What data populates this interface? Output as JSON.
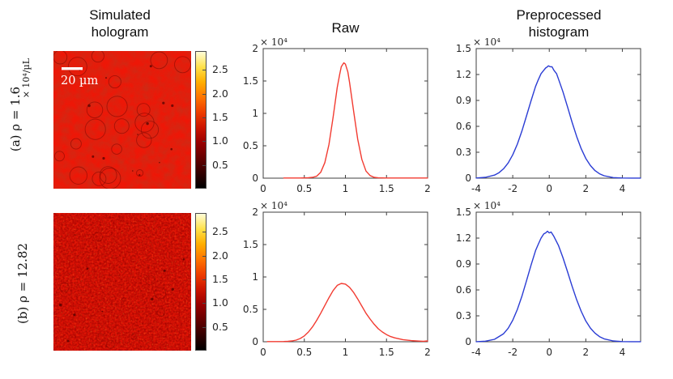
{
  "titles": {
    "col1": "Simulated hologram",
    "col2": "Raw",
    "col3": "Preprocessed histogram"
  },
  "rows": [
    {
      "label_main": "(a) ρ = 1.6",
      "label_sub": "× 10⁴/µL"
    },
    {
      "label_main": "(b) ρ = 12.82",
      "label_sub": ""
    }
  ],
  "holograms": [
    {
      "scale_bar_label": "20 µm",
      "base_color": "#ed1707"
    },
    {
      "scale_bar_label": "",
      "base_color": "#e31405"
    }
  ],
  "colorbar": {
    "colormap": "hot",
    "range": [
      0,
      2.9
    ],
    "values": [
      0.5,
      1.0,
      1.5,
      2.0,
      2.5
    ],
    "labels": [
      "0.5",
      "1.0",
      "1.5",
      "2.0",
      "2.5"
    ],
    "gradient": [
      "#000000",
      "#330000",
      "#660000",
      "#990000",
      "#cc1400",
      "#ee3d00",
      "#ff7400",
      "#ffae00",
      "#ffe14a",
      "#fffdd8"
    ]
  },
  "chart_data": [
    {
      "id": "raw-histogram-a",
      "type": "line",
      "title": "Raw",
      "xlabel": "",
      "ylabel": "",
      "y_multiplier_label": "× 10⁴",
      "xlim": [
        0,
        2
      ],
      "ylim": [
        0,
        2
      ],
      "xticks": [
        0,
        0.5,
        1,
        1.5,
        2
      ],
      "xtick_labels": [
        "0",
        "0.5",
        "1",
        "1.5",
        "2"
      ],
      "yticks": [
        0,
        0.5,
        1,
        1.5,
        2
      ],
      "ytick_labels": [
        "0",
        "0.5",
        "1",
        "1.5",
        "2"
      ],
      "grid": false,
      "legend": "none",
      "series": [
        {
          "name": "raw-intensity-histogram",
          "color": "#f23b31",
          "points": [
            [
              0.25,
              0.002
            ],
            [
              0.35,
              0.002
            ],
            [
              0.45,
              0.003
            ],
            [
              0.55,
              0.006
            ],
            [
              0.6,
              0.012
            ],
            [
              0.65,
              0.03
            ],
            [
              0.7,
              0.09
            ],
            [
              0.75,
              0.24
            ],
            [
              0.8,
              0.52
            ],
            [
              0.85,
              0.94
            ],
            [
              0.9,
              1.4
            ],
            [
              0.93,
              1.6
            ],
            [
              0.95,
              1.72
            ],
            [
              0.98,
              1.78
            ],
            [
              1.0,
              1.76
            ],
            [
              1.03,
              1.64
            ],
            [
              1.05,
              1.48
            ],
            [
              1.1,
              1.03
            ],
            [
              1.15,
              0.6
            ],
            [
              1.2,
              0.29
            ],
            [
              1.25,
              0.11
            ],
            [
              1.3,
              0.04
            ],
            [
              1.35,
              0.012
            ],
            [
              1.4,
              0.005
            ],
            [
              1.5,
              0.002
            ],
            [
              1.6,
              0.002
            ],
            [
              1.8,
              0.002
            ],
            [
              2.0,
              0.002
            ]
          ]
        }
      ]
    },
    {
      "id": "preprocessed-histogram-a",
      "type": "line",
      "title": "Preprocessed histogram",
      "xlabel": "",
      "ylabel": "",
      "y_multiplier_label": "× 10⁴",
      "xlim": [
        -4,
        5
      ],
      "ylim": [
        0,
        1.5
      ],
      "xticks": [
        -4,
        -2,
        0,
        2,
        4
      ],
      "xtick_labels": [
        "-4",
        "-2",
        "0",
        "2",
        "4"
      ],
      "yticks": [
        0,
        0.3,
        0.6,
        0.9,
        1.2,
        1.5
      ],
      "ytick_labels": [
        "0",
        "0.3",
        "0.6",
        "0.9",
        "1.2",
        "1.5"
      ],
      "grid": false,
      "legend": "none",
      "series": [
        {
          "name": "preprocessed-histogram",
          "color": "#2a3cd4",
          "points": [
            [
              -4,
              0.002
            ],
            [
              -3.5,
              0.009
            ],
            [
              -3,
              0.036
            ],
            [
              -2.75,
              0.064
            ],
            [
              -2.5,
              0.109
            ],
            [
              -2.25,
              0.176
            ],
            [
              -2,
              0.27
            ],
            [
              -1.75,
              0.394
            ],
            [
              -1.5,
              0.545
            ],
            [
              -1.25,
              0.717
            ],
            [
              -1,
              0.895
            ],
            [
              -0.75,
              1.062
            ],
            [
              -0.6,
              1.14
            ],
            [
              -0.45,
              1.21
            ],
            [
              -0.3,
              1.25
            ],
            [
              -0.2,
              1.275
            ],
            [
              -0.1,
              1.29
            ],
            [
              -0.05,
              1.3
            ],
            [
              0.05,
              1.29
            ],
            [
              0.15,
              1.29
            ],
            [
              0.25,
              1.25
            ],
            [
              0.4,
              1.21
            ],
            [
              0.5,
              1.15
            ],
            [
              0.75,
              1.0
            ],
            [
              1,
              0.824
            ],
            [
              1.25,
              0.647
            ],
            [
              1.5,
              0.481
            ],
            [
              1.75,
              0.34
            ],
            [
              2,
              0.229
            ],
            [
              2.25,
              0.146
            ],
            [
              2.5,
              0.088
            ],
            [
              2.75,
              0.051
            ],
            [
              3,
              0.028
            ],
            [
              3.5,
              0.007
            ],
            [
              4,
              0.002
            ],
            [
              4.5,
              0.001
            ],
            [
              5,
              0.001
            ]
          ]
        }
      ]
    },
    {
      "id": "raw-histogram-b",
      "type": "line",
      "title": "Raw",
      "xlabel": "",
      "ylabel": "",
      "y_multiplier_label": "× 10⁴",
      "xlim": [
        0,
        2
      ],
      "ylim": [
        0,
        2
      ],
      "xticks": [
        0,
        0.5,
        1,
        1.5,
        2
      ],
      "xtick_labels": [
        "0",
        "0.5",
        "1",
        "1.5",
        "2"
      ],
      "yticks": [
        0,
        0.5,
        1,
        1.5,
        2
      ],
      "ytick_labels": [
        "0",
        "0.5",
        "1",
        "1.5",
        "2"
      ],
      "grid": false,
      "legend": "none",
      "series": [
        {
          "name": "raw-intensity-histogram",
          "color": "#f23b31",
          "points": [
            [
              0.05,
              0.003
            ],
            [
              0.15,
              0.003
            ],
            [
              0.25,
              0.004
            ],
            [
              0.3,
              0.006
            ],
            [
              0.35,
              0.012
            ],
            [
              0.4,
              0.025
            ],
            [
              0.45,
              0.05
            ],
            [
              0.5,
              0.09
            ],
            [
              0.55,
              0.15
            ],
            [
              0.6,
              0.23
            ],
            [
              0.65,
              0.33
            ],
            [
              0.7,
              0.44
            ],
            [
              0.75,
              0.56
            ],
            [
              0.8,
              0.68
            ],
            [
              0.85,
              0.79
            ],
            [
              0.9,
              0.87
            ],
            [
              0.95,
              0.9
            ],
            [
              1.0,
              0.89
            ],
            [
              1.05,
              0.84
            ],
            [
              1.1,
              0.76
            ],
            [
              1.15,
              0.66
            ],
            [
              1.2,
              0.55
            ],
            [
              1.25,
              0.44
            ],
            [
              1.3,
              0.35
            ],
            [
              1.35,
              0.27
            ],
            [
              1.4,
              0.2
            ],
            [
              1.45,
              0.15
            ],
            [
              1.5,
              0.11
            ],
            [
              1.55,
              0.08
            ],
            [
              1.6,
              0.06
            ],
            [
              1.7,
              0.032
            ],
            [
              1.8,
              0.018
            ],
            [
              1.9,
              0.01
            ],
            [
              1.95,
              0.008
            ],
            [
              2.0,
              0.012
            ]
          ]
        }
      ]
    },
    {
      "id": "preprocessed-histogram-b",
      "type": "line",
      "title": "Preprocessed histogram",
      "xlabel": "",
      "ylabel": "",
      "y_multiplier_label": "× 10⁴",
      "xlim": [
        -4,
        5
      ],
      "ylim": [
        0,
        1.5
      ],
      "xticks": [
        -4,
        -2,
        0,
        2,
        4
      ],
      "xtick_labels": [
        "-4",
        "-2",
        "0",
        "2",
        "4"
      ],
      "yticks": [
        0,
        0.3,
        0.6,
        0.9,
        1.2,
        1.5
      ],
      "ytick_labels": [
        "0",
        "0.3",
        "0.6",
        "0.9",
        "1.2",
        "1.5"
      ],
      "grid": false,
      "legend": "none",
      "series": [
        {
          "name": "preprocessed-histogram",
          "color": "#2a3cd4",
          "points": [
            [
              -4,
              0.001
            ],
            [
              -3.5,
              0.007
            ],
            [
              -3,
              0.028
            ],
            [
              -2.5,
              0.093
            ],
            [
              -2.25,
              0.157
            ],
            [
              -2,
              0.248
            ],
            [
              -1.75,
              0.374
            ],
            [
              -1.5,
              0.526
            ],
            [
              -1.25,
              0.702
            ],
            [
              -1,
              0.887
            ],
            [
              -0.75,
              1.056
            ],
            [
              -0.6,
              1.13
            ],
            [
              -0.45,
              1.2
            ],
            [
              -0.3,
              1.25
            ],
            [
              -0.2,
              1.26
            ],
            [
              -0.1,
              1.28
            ],
            [
              0,
              1.26
            ],
            [
              0.1,
              1.27
            ],
            [
              0.25,
              1.22
            ],
            [
              0.5,
              1.117
            ],
            [
              0.75,
              0.974
            ],
            [
              1,
              0.81
            ],
            [
              1.25,
              0.643
            ],
            [
              1.5,
              0.485
            ],
            [
              1.75,
              0.352
            ],
            [
              2,
              0.241
            ],
            [
              2.25,
              0.158
            ],
            [
              2.5,
              0.1
            ],
            [
              2.75,
              0.059
            ],
            [
              3,
              0.034
            ],
            [
              3.5,
              0.009
            ],
            [
              4,
              0.002
            ],
            [
              4.5,
              0.001
            ],
            [
              5,
              0.001
            ]
          ]
        }
      ]
    }
  ]
}
